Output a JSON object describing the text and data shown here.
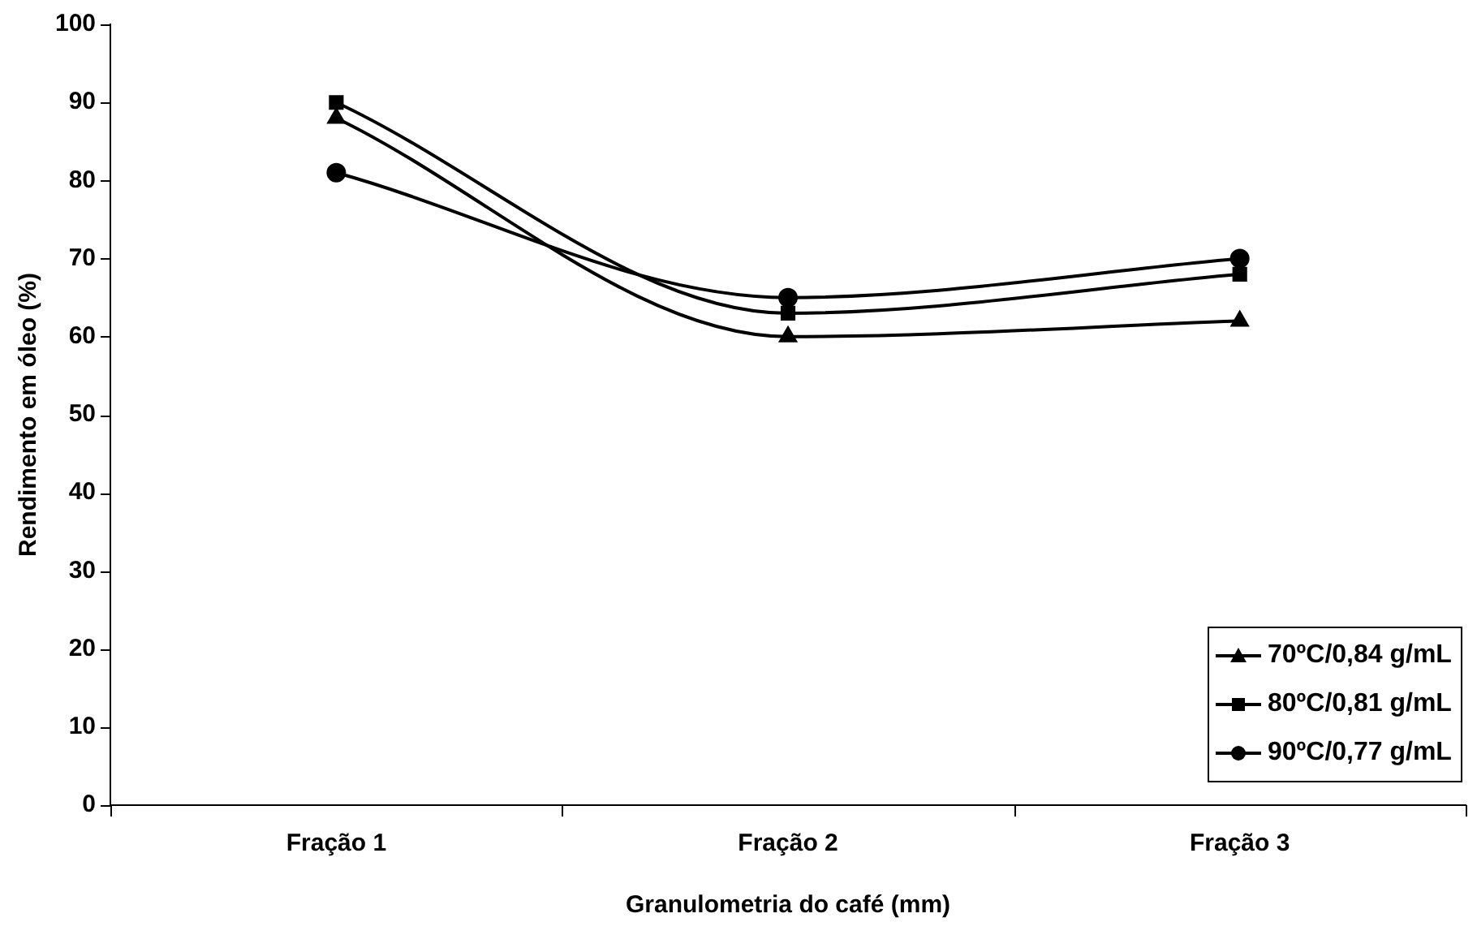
{
  "chart_data": {
    "type": "line",
    "xlabel": "Granulometria do café (mm)",
    "ylabel": "Rendimento em óleo (%)",
    "categories": [
      "Fração 1",
      "Fração 2",
      "Fração 3"
    ],
    "series": [
      {
        "name": "70ºC/0,84 g/mL",
        "color": "#000000",
        "marker": "triangle",
        "values": [
          88,
          60,
          62
        ]
      },
      {
        "name": "80ºC/0,81 g/mL",
        "color": "#000000",
        "marker": "square",
        "values": [
          90,
          63,
          68
        ]
      },
      {
        "name": "90ºC/0,77 g/mL",
        "color": "#000000",
        "marker": "circle",
        "values": [
          81,
          65,
          70
        ]
      }
    ],
    "ylim": [
      0,
      100
    ],
    "yticks": [
      0,
      10,
      20,
      30,
      40,
      50,
      60,
      70,
      80,
      90,
      100
    ],
    "grid": false,
    "legend": "bottom right",
    "line_style": "solid"
  }
}
